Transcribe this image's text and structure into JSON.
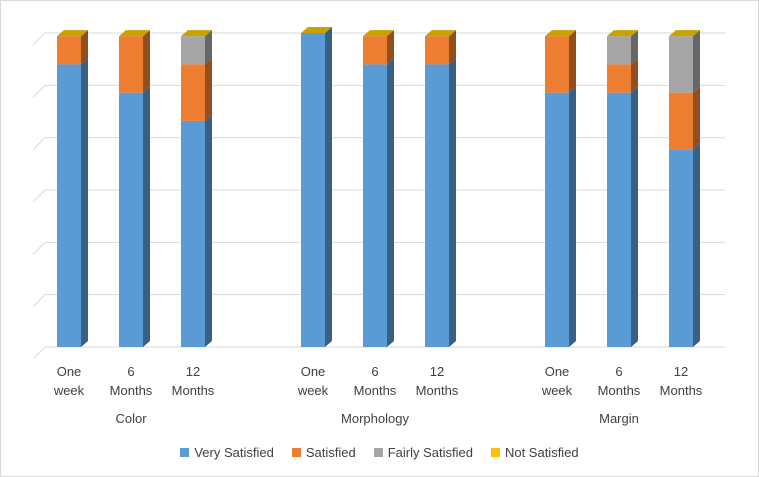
{
  "chart_data": {
    "type": "bar",
    "stacked": true,
    "three_d": true,
    "ylim": [
      0,
      100
    ],
    "y_gridlines": [
      0,
      16.67,
      33.33,
      50,
      66.67,
      83.33,
      100
    ],
    "groups": [
      {
        "name": "Color",
        "categories": [
          [
            "One",
            "week"
          ],
          [
            "6",
            "Months"
          ],
          [
            "12",
            "Months"
          ]
        ]
      },
      {
        "name": "Morphology",
        "categories": [
          [
            "One",
            "week"
          ],
          [
            "6",
            "Months"
          ],
          [
            "12",
            "Months"
          ]
        ]
      },
      {
        "name": "Margin",
        "categories": [
          [
            "One",
            "week"
          ],
          [
            "6",
            "Months"
          ],
          [
            "12",
            "Months"
          ]
        ]
      }
    ],
    "series": [
      {
        "name": "Very Satisfied",
        "color": "#5b9bd5",
        "values": [
          90,
          81,
          72,
          100,
          90,
          90,
          81,
          81,
          63
        ]
      },
      {
        "name": "Satisfied",
        "color": "#ed7d31",
        "values": [
          9,
          18,
          18,
          0,
          9,
          9,
          18,
          9,
          18
        ]
      },
      {
        "name": "Fairly Satisfied",
        "color": "#a5a5a5",
        "values": [
          0,
          0,
          9,
          0,
          0,
          0,
          0,
          9,
          18
        ]
      },
      {
        "name": "Not Satisfied",
        "color": "#ffc000",
        "values": [
          0,
          0,
          0,
          0,
          0,
          0,
          0,
          0,
          0
        ]
      }
    ],
    "legend_position": "bottom",
    "grid": true
  }
}
